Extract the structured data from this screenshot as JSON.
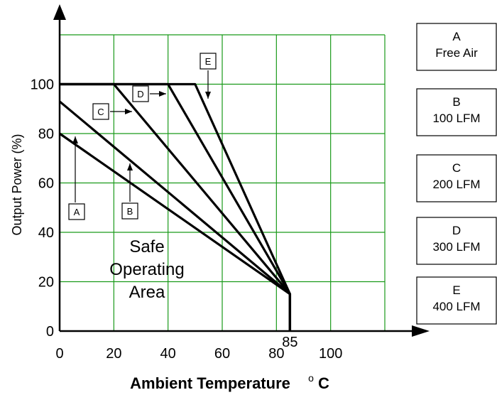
{
  "chart_data": {
    "type": "line",
    "xlabel": "Ambient Temperature",
    "xlabel_unit": "o C",
    "ylabel": "Output Power (%)",
    "xlim": [
      0,
      120
    ],
    "ylim": [
      0,
      120
    ],
    "x_ticks": [
      "0",
      "20",
      "40",
      "60",
      "80",
      "100"
    ],
    "x_tick_values": [
      0,
      20,
      40,
      60,
      80,
      100
    ],
    "y_ticks": [
      "0",
      "20",
      "40",
      "60",
      "80",
      "100"
    ],
    "y_tick_values": [
      0,
      20,
      40,
      60,
      80,
      100
    ],
    "extra_x_label": {
      "text": "85",
      "value": 85
    },
    "grid": true,
    "grid_color": "#1a9a1a",
    "line_color": "#000000",
    "series": [
      {
        "name": "A",
        "x": [
          0,
          85,
          85
        ],
        "y": [
          80,
          15,
          0
        ]
      },
      {
        "name": "B",
        "x": [
          0,
          85,
          85
        ],
        "y": [
          93,
          15,
          0
        ]
      },
      {
        "name": "C",
        "x": [
          0,
          20,
          85,
          85
        ],
        "y": [
          100,
          100,
          15,
          0
        ]
      },
      {
        "name": "D",
        "x": [
          0,
          40,
          85,
          85
        ],
        "y": [
          100,
          100,
          15,
          0
        ]
      },
      {
        "name": "E",
        "x": [
          0,
          50,
          85,
          85
        ],
        "y": [
          100,
          100,
          15,
          0
        ]
      }
    ],
    "annotations": [
      {
        "id": "A",
        "text": "A"
      },
      {
        "id": "B",
        "text": "B"
      },
      {
        "id": "C",
        "text": "C"
      },
      {
        "id": "D",
        "text": "D"
      },
      {
        "id": "E",
        "text": "E"
      }
    ],
    "region_label": [
      "Safe",
      "Operating",
      "Area"
    ],
    "legend": [
      {
        "key": "A",
        "desc": "Free Air"
      },
      {
        "key": "B",
        "desc": "100 LFM"
      },
      {
        "key": "C",
        "desc": "200 LFM"
      },
      {
        "key": "D",
        "desc": "300 LFM"
      },
      {
        "key": "E",
        "desc": "400 LFM"
      }
    ]
  }
}
